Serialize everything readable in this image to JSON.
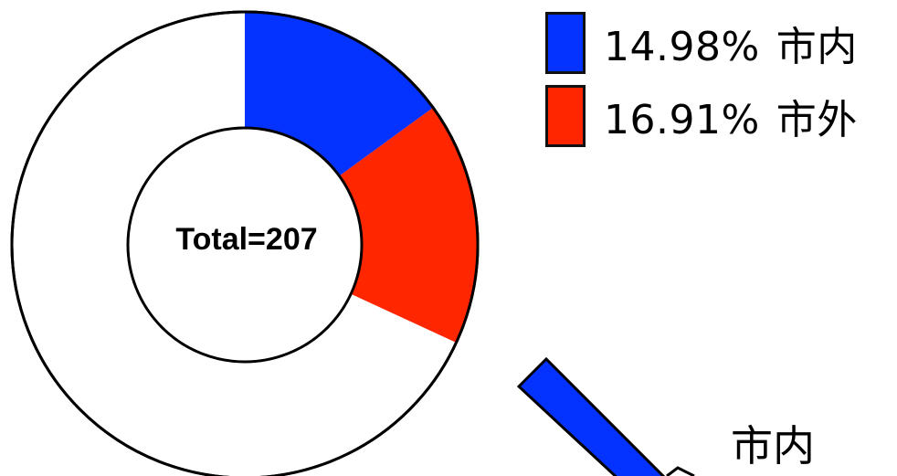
{
  "chart_data": {
    "type": "pie",
    "center_label": "Total=207",
    "series": [
      {
        "name": "市内",
        "percent_label": "14.98%",
        "value": 14.98,
        "color": "#0433ff"
      },
      {
        "name": "市外",
        "percent_label": "16.91%",
        "value": 16.91,
        "color": "#ff2600"
      }
    ],
    "remainder_color": "#ffffff",
    "legend": {
      "position": "top-right"
    },
    "callout": {
      "label": "市内",
      "color": "#0433ff"
    }
  }
}
